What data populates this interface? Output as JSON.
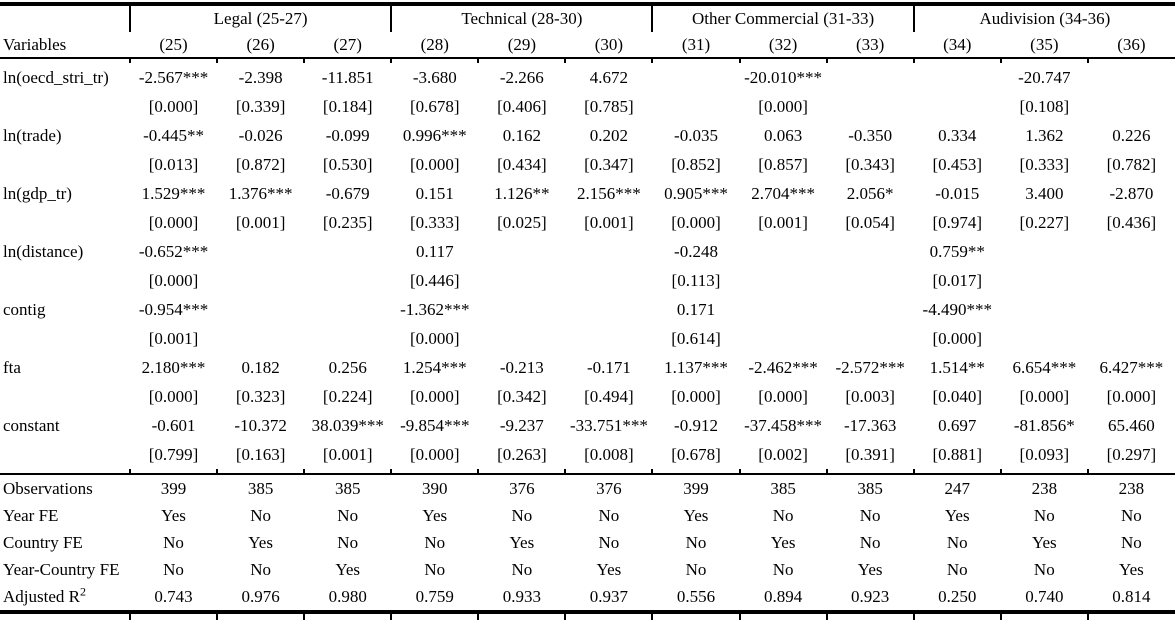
{
  "table": {
    "groups": [
      {
        "label": "Legal (25-27)",
        "span": 3
      },
      {
        "label": "Technical (28-30)",
        "span": 3
      },
      {
        "label": "Other Commercial (31-33)",
        "span": 3
      },
      {
        "label": "Audivision (34-36)",
        "span": 3
      }
    ],
    "header": {
      "variables_label": "Variables",
      "columns": [
        "(25)",
        "(26)",
        "(27)",
        "(28)",
        "(29)",
        "(30)",
        "(31)",
        "(32)",
        "(33)",
        "(34)",
        "(35)",
        "(36)"
      ]
    },
    "coef_rows": [
      {
        "label": "ln(oecd_stri_tr)",
        "coefs": [
          "-2.567***",
          "-2.398",
          "-11.851",
          "-3.680",
          "-2.266",
          "4.672",
          "",
          "-20.010***",
          "",
          "",
          "-20.747",
          ""
        ],
        "pvals": [
          "[0.000]",
          "[0.339]",
          "[0.184]",
          "[0.678]",
          "[0.406]",
          "[0.785]",
          "",
          "[0.000]",
          "",
          "",
          "[0.108]",
          ""
        ]
      },
      {
        "label": "ln(trade)",
        "coefs": [
          "-0.445**",
          "-0.026",
          "-0.099",
          "0.996***",
          "0.162",
          "0.202",
          "-0.035",
          "0.063",
          "-0.350",
          "0.334",
          "1.362",
          "0.226"
        ],
        "pvals": [
          "[0.013]",
          "[0.872]",
          "[0.530]",
          "[0.000]",
          "[0.434]",
          "[0.347]",
          "[0.852]",
          "[0.857]",
          "[0.343]",
          "[0.453]",
          "[0.333]",
          "[0.782]"
        ]
      },
      {
        "label": "ln(gdp_tr)",
        "coefs": [
          "1.529***",
          "1.376***",
          "-0.679",
          "0.151",
          "1.126**",
          "2.156***",
          "0.905***",
          "2.704***",
          "2.056*",
          "-0.015",
          "3.400",
          "-2.870"
        ],
        "pvals": [
          "[0.000]",
          "[0.001]",
          "[0.235]",
          "[0.333]",
          "[0.025]",
          "[0.001]",
          "[0.000]",
          "[0.001]",
          "[0.054]",
          "[0.974]",
          "[0.227]",
          "[0.436]"
        ]
      },
      {
        "label": "ln(distance)",
        "coefs": [
          "-0.652***",
          "",
          "",
          "0.117",
          "",
          "",
          "-0.248",
          "",
          "",
          "0.759**",
          "",
          ""
        ],
        "pvals": [
          "[0.000]",
          "",
          "",
          "[0.446]",
          "",
          "",
          "[0.113]",
          "",
          "",
          "[0.017]",
          "",
          ""
        ]
      },
      {
        "label": "contig",
        "coefs": [
          "-0.954***",
          "",
          "",
          "-1.362***",
          "",
          "",
          "0.171",
          "",
          "",
          "-4.490***",
          "",
          ""
        ],
        "pvals": [
          "[0.001]",
          "",
          "",
          "[0.000]",
          "",
          "",
          "[0.614]",
          "",
          "",
          "[0.000]",
          "",
          ""
        ]
      },
      {
        "label": "fta",
        "coefs": [
          "2.180***",
          "0.182",
          "0.256",
          "1.254***",
          "-0.213",
          "-0.171",
          "1.137***",
          "-2.462***",
          "-2.572***",
          "1.514**",
          "6.654***",
          "6.427***"
        ],
        "pvals": [
          "[0.000]",
          "[0.323]",
          "[0.224]",
          "[0.000]",
          "[0.342]",
          "[0.494]",
          "[0.000]",
          "[0.000]",
          "[0.003]",
          "[0.040]",
          "[0.000]",
          "[0.000]"
        ]
      },
      {
        "label": "constant",
        "coefs": [
          "-0.601",
          "-10.372",
          "38.039***",
          "-9.854***",
          "-9.237",
          "-33.751***",
          "-0.912",
          "-37.458***",
          "-17.363",
          "0.697",
          "-81.856*",
          "65.460"
        ],
        "pvals": [
          "[0.799]",
          "[0.163]",
          "[0.001]",
          "[0.000]",
          "[0.263]",
          "[0.008]",
          "[0.678]",
          "[0.002]",
          "[0.391]",
          "[0.881]",
          "[0.093]",
          "[0.297]"
        ]
      }
    ],
    "stat_rows": [
      {
        "label": "Observations",
        "sup": "",
        "values": [
          "399",
          "385",
          "385",
          "390",
          "376",
          "376",
          "399",
          "385",
          "385",
          "247",
          "238",
          "238"
        ]
      },
      {
        "label": "Year FE",
        "sup": "",
        "values": [
          "Yes",
          "No",
          "No",
          "Yes",
          "No",
          "No",
          "Yes",
          "No",
          "No",
          "Yes",
          "No",
          "No"
        ]
      },
      {
        "label": "Country FE",
        "sup": "",
        "values": [
          "No",
          "Yes",
          "No",
          "No",
          "Yes",
          "No",
          "No",
          "Yes",
          "No",
          "No",
          "Yes",
          "No"
        ]
      },
      {
        "label": "Year-Country FE",
        "sup": "",
        "values": [
          "No",
          "No",
          "Yes",
          "No",
          "No",
          "Yes",
          "No",
          "No",
          "Yes",
          "No",
          "No",
          "Yes"
        ]
      },
      {
        "label": "Adjusted R",
        "sup": "2",
        "values": [
          "0.743",
          "0.976",
          "0.980",
          "0.759",
          "0.933",
          "0.937",
          "0.556",
          "0.894",
          "0.923",
          "0.250",
          "0.740",
          "0.814"
        ]
      }
    ],
    "layout": {
      "first_col_width": 130,
      "data_col_count": 12,
      "rule_color": "#000000"
    }
  }
}
